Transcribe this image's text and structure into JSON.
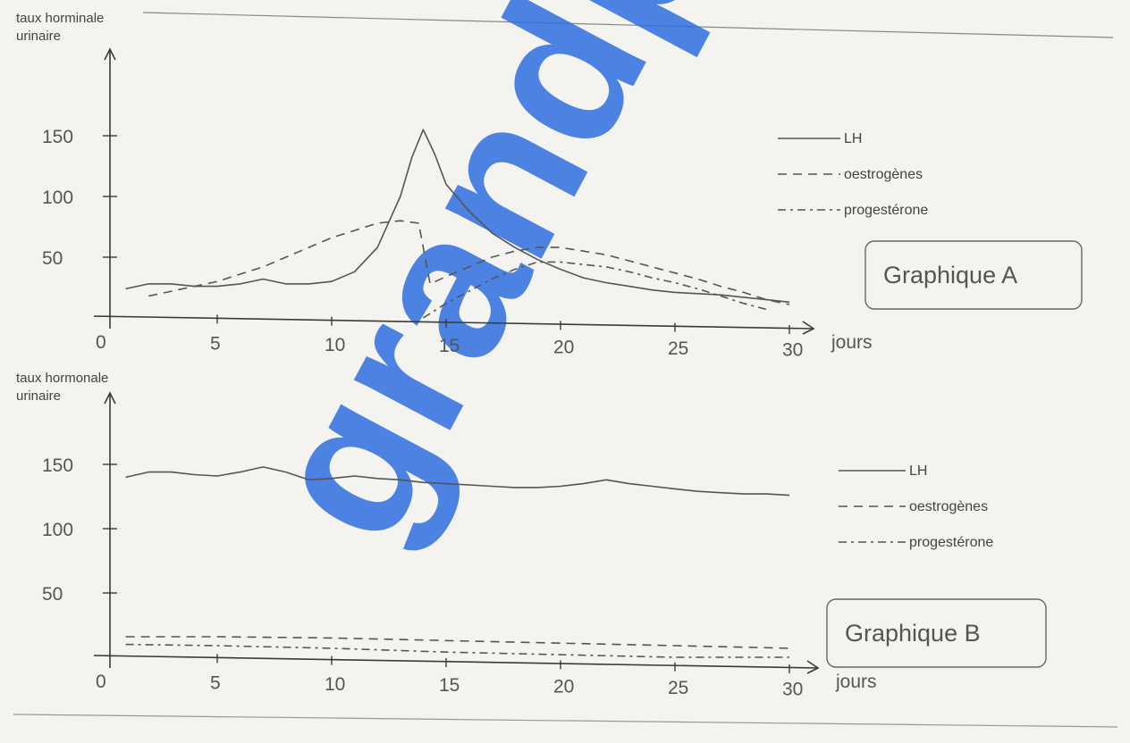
{
  "chart_data": [
    {
      "type": "line",
      "title": "Graphique A",
      "ylabel": "taux horminale urinaire",
      "xlabel": "jours",
      "xlim": [
        0,
        30
      ],
      "ylim": [
        0,
        180
      ],
      "xticks": [
        0,
        5,
        10,
        15,
        20,
        25,
        30
      ],
      "yticks": [
        50,
        100,
        150
      ],
      "legend": "right",
      "series": [
        {
          "name": "LH",
          "style": "solid",
          "color": "#555555",
          "x": [
            1,
            2,
            3,
            4,
            5,
            6,
            7,
            8,
            9,
            10,
            11,
            12,
            13,
            13.5,
            14,
            14.5,
            15,
            16,
            17,
            18,
            19,
            20,
            21,
            22,
            23,
            24,
            25,
            26,
            27,
            28,
            29,
            30
          ],
          "y": [
            24,
            28,
            28,
            26,
            26,
            28,
            32,
            28,
            28,
            30,
            38,
            58,
            100,
            132,
            155,
            135,
            110,
            88,
            70,
            58,
            48,
            40,
            33,
            29,
            26,
            23,
            21,
            20,
            19,
            17,
            15,
            13
          ]
        },
        {
          "name": "oestrogènes",
          "style": "dash",
          "color": "#555555",
          "x": [
            2,
            3,
            4,
            5,
            6,
            7,
            8,
            9,
            10,
            11,
            12,
            13,
            13.8,
            14.3,
            15,
            16,
            17,
            18,
            19,
            20,
            21,
            22,
            23,
            24,
            25,
            26,
            27,
            28,
            29,
            30
          ],
          "y": [
            18,
            22,
            26,
            30,
            36,
            42,
            50,
            58,
            66,
            72,
            78,
            80,
            78,
            28,
            34,
            42,
            50,
            55,
            58,
            58,
            55,
            52,
            47,
            42,
            37,
            32,
            26,
            21,
            15,
            11
          ]
        },
        {
          "name": "progestérone",
          "style": "dashdot",
          "color": "#555555",
          "x": [
            14,
            15,
            16,
            17,
            18,
            19,
            20,
            21,
            22,
            23,
            24,
            25,
            26,
            27,
            28,
            29
          ],
          "y": [
            0,
            12,
            22,
            32,
            40,
            46,
            46,
            44,
            42,
            38,
            33,
            29,
            24,
            18,
            12,
            7
          ]
        }
      ]
    },
    {
      "type": "line",
      "title": "Graphique B",
      "ylabel": "taux hormonale urinaire",
      "xlabel": "jours",
      "xlim": [
        0,
        30
      ],
      "ylim": [
        0,
        180
      ],
      "xticks": [
        0,
        5,
        10,
        15,
        20,
        25,
        30
      ],
      "yticks": [
        50,
        100,
        150
      ],
      "legend": "right",
      "series": [
        {
          "name": "LH",
          "style": "solid",
          "color": "#555555",
          "x": [
            1,
            2,
            3,
            4,
            5,
            6,
            7,
            8,
            9,
            10,
            11,
            12,
            13,
            14,
            15,
            16,
            17,
            18,
            19,
            20,
            21,
            22,
            23,
            24,
            25,
            26,
            27,
            28,
            29,
            30
          ],
          "y": [
            140,
            144,
            144,
            142,
            141,
            144,
            148,
            144,
            138,
            139,
            141,
            139,
            138,
            136,
            135,
            134,
            133,
            132,
            132,
            133,
            135,
            138,
            135,
            133,
            131,
            129,
            128,
            127,
            127,
            126
          ]
        },
        {
          "name": "oestrogènes",
          "style": "dash",
          "color": "#555555",
          "x": [
            1,
            5,
            10,
            15,
            20,
            25,
            30
          ],
          "y": [
            16,
            16,
            15,
            13,
            11,
            9,
            7
          ]
        },
        {
          "name": "progestérone",
          "style": "dashdot",
          "color": "#555555",
          "x": [
            1,
            5,
            10,
            15,
            20,
            25,
            30
          ],
          "y": [
            10,
            9,
            7,
            4,
            2,
            0,
            0
          ]
        }
      ]
    }
  ]
}
